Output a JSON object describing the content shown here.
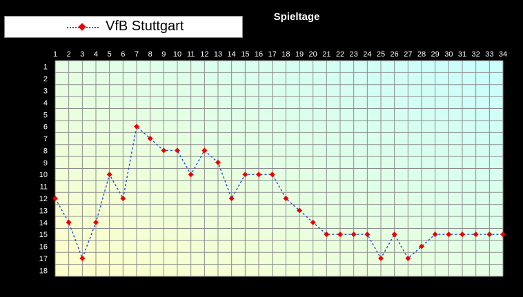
{
  "title": "Spieltage",
  "legend": {
    "label": "VfB Stuttgart"
  },
  "colors": {
    "plot_bg_start": "#c8ffff",
    "plot_bg_end": "#ffffc8",
    "grid": "#8c8c8c",
    "line": "#2a4fe0",
    "marker": "#ee0000",
    "background": "#000000"
  },
  "chart_data": {
    "type": "line",
    "title": "Spieltage",
    "x": [
      1,
      2,
      3,
      4,
      5,
      6,
      7,
      8,
      9,
      10,
      11,
      12,
      13,
      14,
      15,
      16,
      17,
      18,
      19,
      20,
      21,
      22,
      23,
      24,
      25,
      26,
      27,
      28,
      29,
      30,
      31,
      32,
      33,
      34
    ],
    "x_tick_labels": [
      "1",
      "2",
      "3",
      "4",
      "5",
      "6",
      "7",
      "8",
      "9",
      "10",
      "11",
      "12",
      "13",
      "14",
      "15",
      "16",
      "17",
      "18",
      "19",
      "20",
      "21",
      "22",
      "23",
      "24",
      "25",
      "26",
      "27",
      "28",
      "29",
      "30",
      "31",
      "32",
      "33",
      "34"
    ],
    "y_tick_labels": [
      "1",
      "2",
      "3",
      "4",
      "5",
      "6",
      "7",
      "8",
      "9",
      "10",
      "11",
      "12",
      "13",
      "14",
      "15",
      "16",
      "17",
      "18"
    ],
    "xlim": [
      1,
      34
    ],
    "ylim": [
      1,
      18
    ],
    "y_reversed": true,
    "x_axis_position": "top",
    "grid": true,
    "legend_position": "top-left",
    "series": [
      {
        "name": "VfB Stuttgart",
        "values": [
          12,
          14,
          17,
          14,
          10,
          12,
          6,
          7,
          8,
          8,
          10,
          8,
          9,
          12,
          10,
          10,
          10,
          12,
          13,
          14,
          15,
          15,
          15,
          15,
          17,
          15,
          17,
          16,
          15,
          15,
          15,
          15,
          15,
          15
        ]
      }
    ]
  }
}
